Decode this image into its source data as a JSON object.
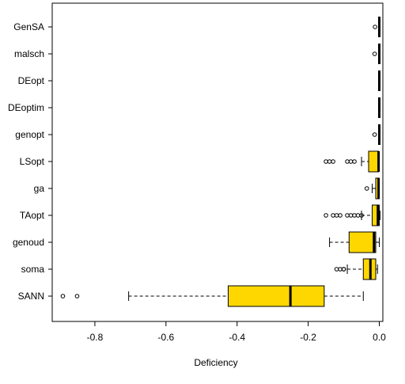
{
  "chart_data": {
    "type": "boxplot",
    "orientation": "horizontal",
    "xlabel": "Deficiency",
    "ylabel": "",
    "title": "",
    "xlim": [
      -0.92,
      0.01
    ],
    "xticks": [
      -0.8,
      -0.6,
      -0.4,
      -0.2,
      0.0
    ],
    "xtick_labels": [
      "-0.8",
      "-0.6",
      "-0.4",
      "-0.2",
      "0.0"
    ],
    "box_fill": "#FFD700",
    "categories": [
      "GenSA",
      "malsch",
      "DEopt",
      "DEoptim",
      "genopt",
      "LSopt",
      "ga",
      "TAopt",
      "genoud",
      "soma",
      "SANN"
    ],
    "boxes": [
      {
        "name": "GenSA",
        "wlo": 0.0,
        "q1": 0.0,
        "med": 0.0,
        "q3": 0.0,
        "whi": 0.0,
        "outliers": [
          -0.012
        ]
      },
      {
        "name": "malsch",
        "wlo": 0.0,
        "q1": 0.0,
        "med": 0.0,
        "q3": 0.0,
        "whi": 0.0,
        "outliers": [
          -0.013
        ]
      },
      {
        "name": "DEopt",
        "wlo": 0.0,
        "q1": 0.0,
        "med": 0.0,
        "q3": 0.0,
        "whi": 0.0,
        "outliers": []
      },
      {
        "name": "DEoptim",
        "wlo": -0.002,
        "q1": 0.0,
        "med": 0.0,
        "q3": 0.0,
        "whi": 0.0,
        "outliers": []
      },
      {
        "name": "genopt",
        "wlo": 0.0,
        "q1": 0.0,
        "med": 0.0,
        "q3": 0.0,
        "whi": 0.0,
        "outliers": [
          -0.013
        ]
      },
      {
        "name": "LSopt",
        "wlo": -0.05,
        "q1": -0.03,
        "med": -0.002,
        "q3": -0.002,
        "whi": 0.0,
        "outliers": [
          -0.15,
          -0.14,
          -0.13,
          -0.09,
          -0.08,
          -0.07
        ]
      },
      {
        "name": "ga",
        "wlo": -0.02,
        "q1": -0.01,
        "med": -0.002,
        "q3": 0.0,
        "whi": 0.0,
        "outliers": [
          -0.035
        ]
      },
      {
        "name": "TAopt",
        "wlo": -0.05,
        "q1": -0.02,
        "med": -0.004,
        "q3": 0.0,
        "whi": 0.002,
        "outliers": [
          -0.15,
          -0.13,
          -0.12,
          -0.11,
          -0.09,
          -0.08,
          -0.07,
          -0.06,
          -0.05
        ]
      },
      {
        "name": "genoud",
        "wlo": -0.14,
        "q1": -0.085,
        "med": -0.015,
        "q3": -0.01,
        "whi": 0.0,
        "outliers": []
      },
      {
        "name": "soma",
        "wlo": -0.09,
        "q1": -0.045,
        "med": -0.025,
        "q3": -0.01,
        "whi": -0.005,
        "outliers": [
          -0.12,
          -0.11,
          -0.1,
          -0.1
        ]
      },
      {
        "name": "SANN",
        "wlo": -0.705,
        "q1": -0.425,
        "med": -0.25,
        "q3": -0.155,
        "whi": -0.045,
        "outliers": [
          -0.89,
          -0.85
        ]
      }
    ]
  }
}
